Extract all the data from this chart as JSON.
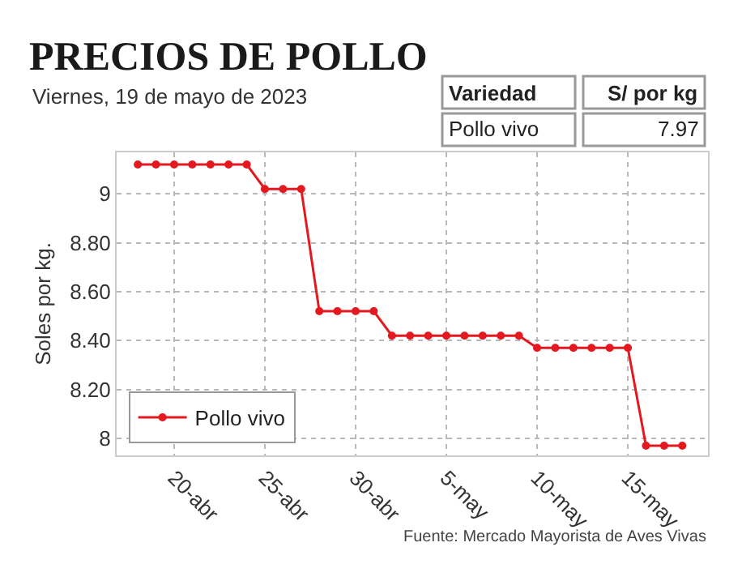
{
  "chart_data": {
    "type": "line",
    "title": "PRECIOS DE POLLO",
    "subtitle": "Viernes, 19 de mayo de 2023",
    "ylabel": "Soles por kg.",
    "annotations": [
      "Fuente: Mercado Mayorista de Aves Vivas",
      "Variedad",
      "S/ por kg",
      "Pollo vivo",
      "7.97"
    ],
    "x": [
      "2023-04-18",
      "2023-04-19",
      "2023-04-20",
      "2023-04-21",
      "2023-04-22",
      "2023-04-23",
      "2023-04-24",
      "2023-04-25",
      "2023-04-26",
      "2023-04-27",
      "2023-04-28",
      "2023-04-29",
      "2023-04-30",
      "2023-05-01",
      "2023-05-02",
      "2023-05-03",
      "2023-05-04",
      "2023-05-05",
      "2023-05-06",
      "2023-05-07",
      "2023-05-08",
      "2023-05-09",
      "2023-05-10",
      "2023-05-11",
      "2023-05-12",
      "2023-05-13",
      "2023-05-14",
      "2023-05-15",
      "2023-05-16",
      "2023-05-17",
      "2023-05-18"
    ],
    "series": [
      {
        "name": "Pollo vivo",
        "color": "#e3191f",
        "values": [
          9.12,
          9.12,
          9.12,
          9.12,
          9.12,
          9.12,
          9.12,
          9.02,
          9.02,
          9.02,
          8.52,
          8.52,
          8.52,
          8.52,
          8.42,
          8.42,
          8.42,
          8.42,
          8.42,
          8.42,
          8.42,
          8.42,
          8.37,
          8.37,
          8.37,
          8.37,
          8.37,
          8.37,
          7.97,
          7.97,
          7.97
        ]
      }
    ],
    "xlim": [
      "2023-04-16T20:00",
      "2023-05-19T10:00"
    ],
    "xticks": [
      {
        "value": "2023-04-20",
        "label": "20-abr"
      },
      {
        "value": "2023-04-25",
        "label": "25-abr"
      },
      {
        "value": "2023-04-30",
        "label": "30-abr"
      },
      {
        "value": "2023-05-05",
        "label": "5-may"
      },
      {
        "value": "2023-05-10",
        "label": "10-may"
      },
      {
        "value": "2023-05-15",
        "label": "15-may"
      }
    ],
    "ylim": [
      7.93,
      9.17
    ],
    "yticks": [
      8,
      {
        "value": 8.2,
        "label": "8.20"
      },
      {
        "value": 8.4,
        "label": "8.40"
      },
      {
        "value": 8.6,
        "label": "8.60"
      },
      {
        "value": 8.8,
        "label": "8.80"
      },
      9
    ],
    "grid": true,
    "legend": "bottom left",
    "marker": "circle",
    "line_style": "solid"
  }
}
